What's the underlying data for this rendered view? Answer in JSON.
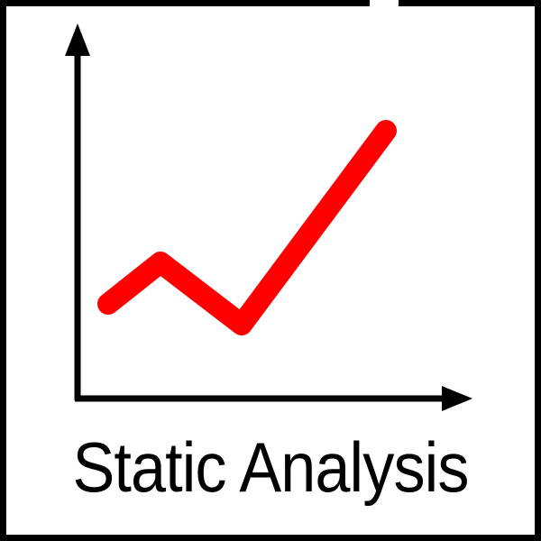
{
  "caption": {
    "text": "Static Analysis"
  },
  "icon": {
    "name": "rising-line-chart-icon",
    "axis_color": "#000000",
    "trend_color": "#ff0000"
  }
}
